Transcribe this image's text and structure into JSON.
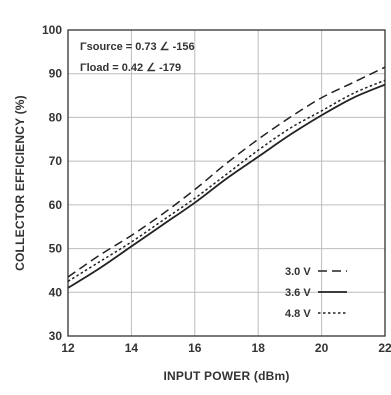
{
  "chart_data": {
    "type": "line",
    "title": "",
    "xlabel": "INPUT POWER (dBm)",
    "ylabel": "COLLECTOR EFFICIENCY (%)",
    "xlim": [
      12,
      22
    ],
    "ylim": [
      30,
      100
    ],
    "xticks": [
      12,
      14,
      16,
      18,
      20,
      22
    ],
    "yticks": [
      30,
      40,
      50,
      60,
      70,
      80,
      90,
      100
    ],
    "grid": true,
    "legend_position": "bottom-right",
    "annotations": [
      "Γsource = 0.73 ∠ -156",
      "Γload = 0.42 ∠ -179"
    ],
    "series": [
      {
        "name": "3.0 V",
        "style": "dashed",
        "color": "#222222",
        "x": [
          12,
          13,
          14,
          15,
          16,
          17,
          18,
          19,
          20,
          21,
          22
        ],
        "y": [
          43.5,
          48.5,
          53.0,
          58.0,
          63.5,
          69.5,
          75.0,
          80.0,
          84.5,
          88.0,
          91.5
        ]
      },
      {
        "name": "3.6 V",
        "style": "solid",
        "color": "#222222",
        "x": [
          12,
          13,
          14,
          15,
          16,
          17,
          18,
          19,
          20,
          21,
          22
        ],
        "y": [
          41.0,
          45.5,
          50.5,
          55.5,
          60.5,
          66.0,
          71.0,
          76.0,
          80.5,
          84.5,
          87.5
        ]
      },
      {
        "name": "4.8 V",
        "style": "dotted",
        "color": "#222222",
        "x": [
          12,
          13,
          14,
          15,
          16,
          17,
          18,
          19,
          20,
          21,
          22
        ],
        "y": [
          42.5,
          47.0,
          51.5,
          56.5,
          61.5,
          67.0,
          72.5,
          77.5,
          81.5,
          85.5,
          88.5
        ]
      }
    ]
  }
}
